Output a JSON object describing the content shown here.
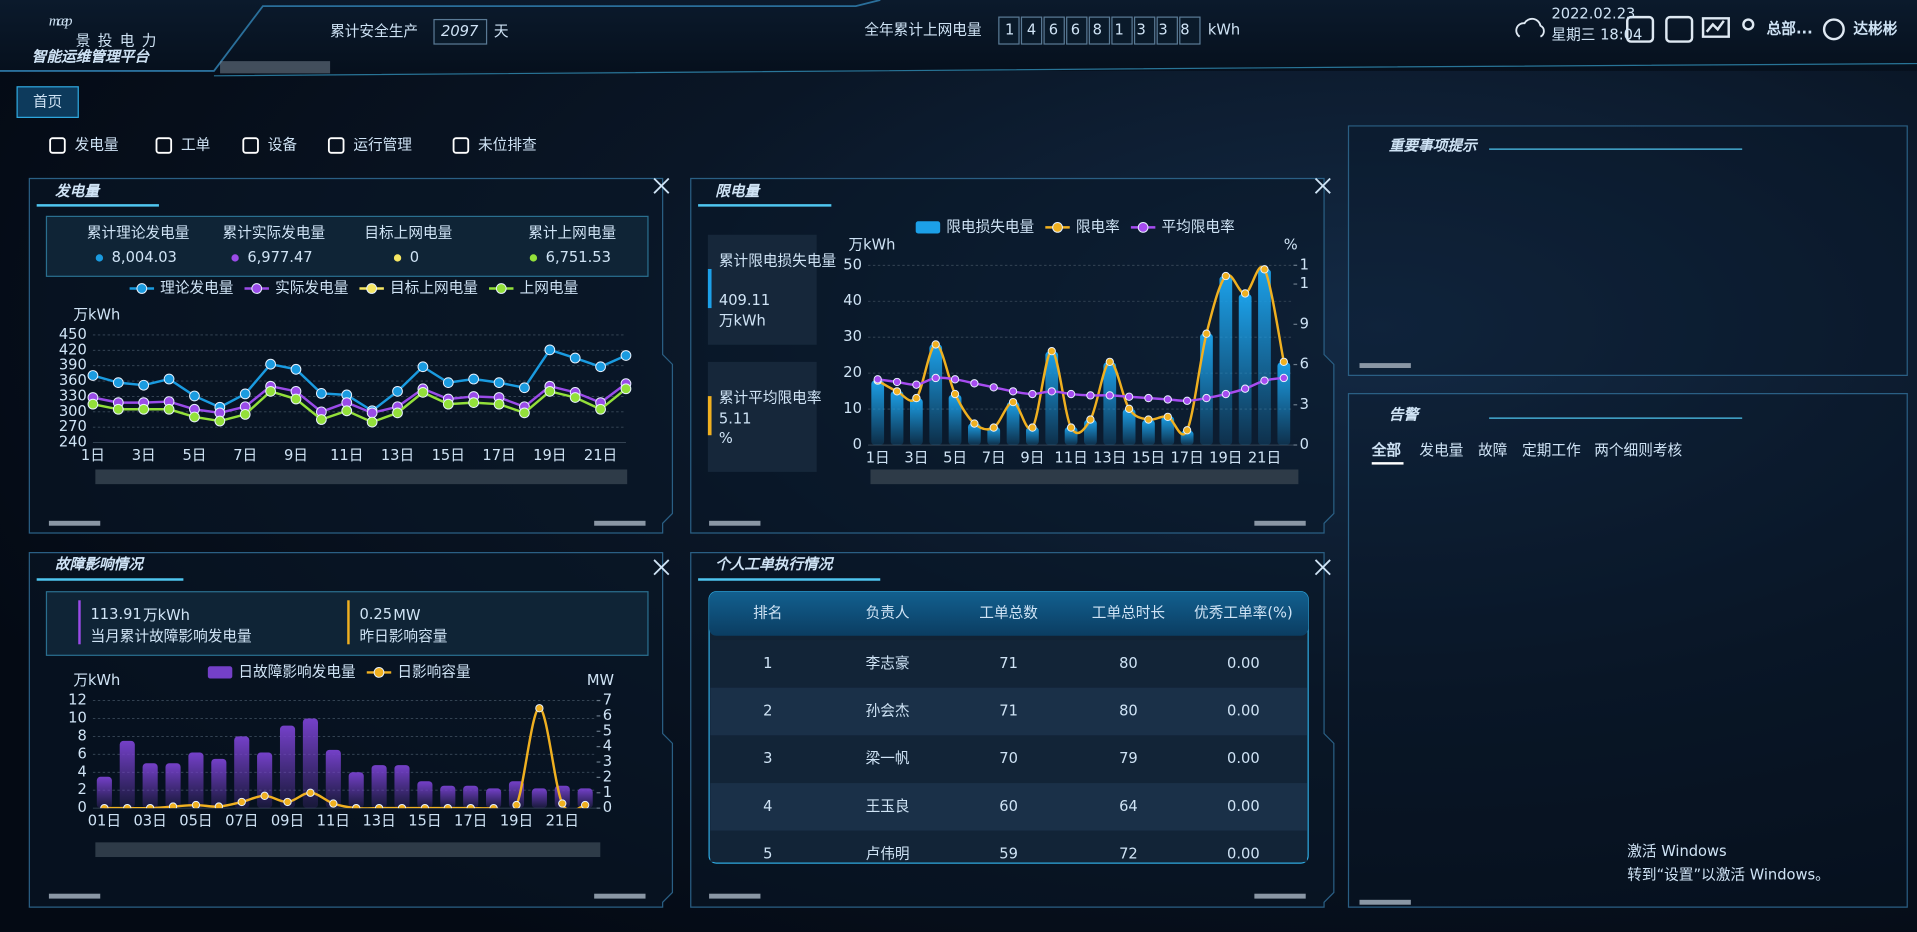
{
  "header": {
    "logo": "mcep",
    "logo_subtitle": "景投电力",
    "platform": "智能运维管理平台",
    "safety_label": "累计安全生产",
    "safety_days": "2097",
    "safety_unit": "天",
    "energy_label": "全年累计上网电量",
    "energy_digits": "146681338",
    "energy_unit": "kWh",
    "date": "2022.02.23",
    "weekday_time": "星期三 18:04",
    "org": "总部...",
    "user": "达彬彬"
  },
  "nav": {
    "home": "首页",
    "menu": [
      "发电量",
      "工单",
      "设备",
      "运行管理",
      "未位排查"
    ]
  },
  "chart_data": [
    {
      "type": "line",
      "title": "发电量",
      "stats": [
        {
          "label": "累计理论发电量",
          "value": "8,004.03"
        },
        {
          "label": "累计实际发电量",
          "value": "6,977.47"
        },
        {
          "label": "目标上网电量",
          "value": "0"
        },
        {
          "label": "累计上网电量",
          "value": "6,751.53"
        }
      ],
      "y_label": "万kWh",
      "categories": [
        "1日",
        null,
        "3日",
        null,
        "5日",
        null,
        "7日",
        null,
        "9日",
        null,
        "11日",
        null,
        "13日",
        null,
        "15日",
        null,
        "17日",
        null,
        "19日",
        null,
        "21日",
        null
      ],
      "series": [
        {
          "name": "理论发电量",
          "color": "#1a9be0",
          "values": [
            371,
            357,
            352,
            364,
            331,
            309,
            335,
            393,
            383,
            336,
            333,
            302,
            340,
            388,
            357,
            364,
            357,
            347,
            421,
            405,
            388,
            410
          ]
        },
        {
          "name": "实际发电量",
          "color": "#9a4be8",
          "values": [
            328,
            318,
            318,
            320,
            305,
            298,
            310,
            350,
            340,
            300,
            318,
            298,
            310,
            345,
            325,
            330,
            328,
            310,
            350,
            338,
            318,
            355
          ]
        },
        {
          "name": "目标上网电量",
          "color": "#f5e663",
          "values": [
            0,
            0,
            0,
            0,
            0,
            0,
            0,
            0,
            0,
            0,
            0,
            0,
            0,
            0,
            0,
            0,
            0,
            0,
            0,
            0,
            0,
            0
          ]
        },
        {
          "name": "上网电量",
          "color": "#93e03a",
          "values": [
            315,
            305,
            305,
            305,
            290,
            282,
            295,
            340,
            325,
            285,
            302,
            280,
            298,
            338,
            315,
            318,
            315,
            298,
            340,
            328,
            305,
            345
          ]
        }
      ],
      "ylim": [
        240,
        450
      ],
      "yticks": [
        240,
        270,
        300,
        330,
        360,
        390,
        420,
        450
      ],
      "grid": true
    },
    {
      "type": "bar",
      "title": "限电量",
      "stats": [
        {
          "label": "累计限电损失电量",
          "value": "409.11",
          "unit": "万kWh"
        },
        {
          "label": "累计平均限电率",
          "value": "5.11",
          "unit": "%"
        }
      ],
      "y_label": "万kWh",
      "y2_label": "%",
      "categories": [
        "1日",
        null,
        "3日",
        null,
        "5日",
        null,
        "7日",
        null,
        "9日",
        null,
        "11日",
        null,
        "13日",
        null,
        "15日",
        null,
        "17日",
        null,
        "19日",
        null,
        "21日",
        null
      ],
      "series": [
        {
          "name": "限电损失电量",
          "type": "bar",
          "color": "#1ca0e8",
          "values": [
            18,
            15,
            13,
            28,
            14,
            6,
            5,
            12,
            5,
            26,
            5,
            7,
            23,
            10,
            7,
            8,
            4,
            31,
            47,
            42,
            49,
            23
          ]
        },
        {
          "name": "限电率",
          "type": "line",
          "axis": "y2",
          "smooth": true,
          "color": "#f0b020",
          "values": [
            4.8,
            4,
            3.5,
            7.5,
            3.8,
            1.6,
            1.3,
            3.2,
            1.3,
            7,
            1.3,
            1.9,
            6.2,
            2.7,
            1.9,
            2.1,
            1.1,
            8.3,
            12.6,
            11.3,
            13.1,
            6.2
          ]
        },
        {
          "name": "平均限电率",
          "type": "line",
          "axis": "y2",
          "smooth": true,
          "color": "#a64cf0",
          "values": [
            4.9,
            4.7,
            4.5,
            5,
            4.9,
            4.6,
            4.3,
            4,
            3.8,
            4,
            3.8,
            3.7,
            3.7,
            3.6,
            3.5,
            3.4,
            3.3,
            3.5,
            3.8,
            4.2,
            4.8,
            5
          ]
        }
      ],
      "ylim": [
        0,
        50
      ],
      "yticks": [
        0,
        10,
        20,
        30,
        40,
        50
      ],
      "y2lim": [
        0,
        13.4
      ],
      "y2ticks": [
        0,
        3,
        6,
        9,
        {
          "value": 12,
          "label": "1"
        },
        {
          "value": 13.4,
          "label": "1"
        }
      ],
      "grid": true
    },
    {
      "type": "bar",
      "title": "故障影响情况",
      "stats": [
        {
          "value": "113.91",
          "unit": "万kWh",
          "label": "当月累计故障影响发电量"
        },
        {
          "value": "0.25",
          "unit": "MW",
          "label": "昨日影响容量"
        }
      ],
      "y_label": "万kWh",
      "y2_label": "MW",
      "categories": [
        "01日",
        null,
        "03日",
        null,
        "05日",
        null,
        "07日",
        null,
        "09日",
        null,
        "11日",
        null,
        "13日",
        null,
        "15日",
        null,
        "17日",
        null,
        "19日",
        null,
        "21日",
        null
      ],
      "series": [
        {
          "name": "日故障影响发电量",
          "type": "bar",
          "color": "#7440c8",
          "values": [
            3.5,
            7.5,
            5,
            5,
            6.2,
            5.5,
            8,
            6.2,
            9.2,
            10,
            6.5,
            4,
            4.8,
            4.8,
            3,
            2.5,
            2.5,
            2.2,
            3,
            2.2,
            2.5,
            2.2
          ]
        },
        {
          "name": "日影响容量",
          "type": "line",
          "axis": "y2",
          "smooth": true,
          "color": "#f0b020",
          "values": [
            0,
            0,
            0,
            0.1,
            0.2,
            0.1,
            0.4,
            0.8,
            0.4,
            1,
            0.3,
            0,
            0,
            0,
            0,
            0,
            0,
            0,
            0.2,
            6.5,
            0.3,
            0.2
          ]
        }
      ],
      "ylim": [
        0,
        12
      ],
      "yticks": [
        0,
        2,
        4,
        6,
        8,
        10,
        12
      ],
      "y2lim": [
        0,
        7
      ],
      "y2ticks": [
        0,
        1,
        2,
        3,
        4,
        5,
        6,
        7
      ],
      "grid": true
    }
  ],
  "work_orders": {
    "title": "个人工单执行情况",
    "columns": [
      "排名",
      "负责人",
      "工单总数",
      "工单总时长",
      "优秀工单率(%)"
    ],
    "rows": [
      [
        1,
        "李志豪",
        71,
        80,
        "0.00"
      ],
      [
        2,
        "孙会杰",
        71,
        80,
        "0.00"
      ],
      [
        3,
        "梁一帆",
        70,
        79,
        "0.00"
      ],
      [
        4,
        "王玉良",
        60,
        64,
        "0.00"
      ],
      [
        5,
        "卢伟明",
        59,
        72,
        "0.00"
      ]
    ]
  },
  "notices": {
    "title": "重要事项提示"
  },
  "alerts": {
    "title": "告警",
    "tabs": [
      "全部",
      "发电量",
      "故障",
      "定期工作",
      "两个细则考核"
    ]
  },
  "watermark": {
    "title": "激活 Windows",
    "text": "转到“设置”以激活 Windows。"
  }
}
